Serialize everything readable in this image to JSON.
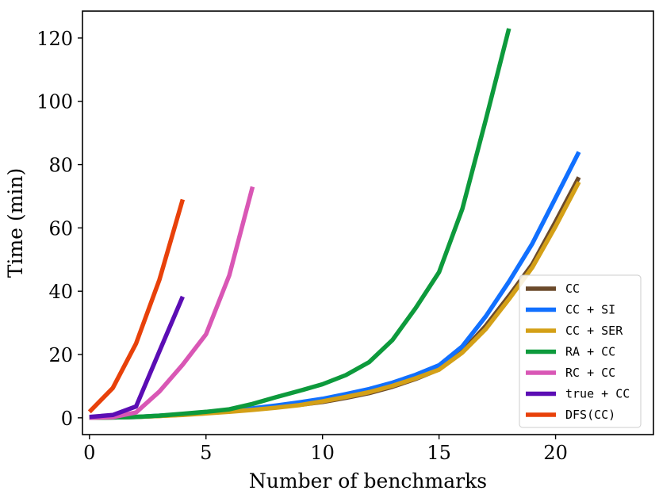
{
  "chart_data": {
    "type": "line",
    "title": "",
    "xlabel": "Number of benchmarks",
    "ylabel": "Time (min)",
    "xlim": [
      -0.3,
      24.2
    ],
    "ylim": [
      -5.3,
      128.5
    ],
    "xticks": [
      0,
      5,
      10,
      15,
      20
    ],
    "yticks": [
      0,
      20,
      40,
      60,
      80,
      100,
      120
    ],
    "legend_position": "bottom-right",
    "series": [
      {
        "name": "CC",
        "color": "#6B4A2B",
        "x": [
          0,
          1,
          2,
          3,
          4,
          5,
          6,
          7,
          8,
          9,
          10,
          11,
          12,
          13,
          14,
          15,
          16,
          17,
          18,
          19,
          20,
          21
        ],
        "y": [
          0,
          0.1,
          0.3,
          0.6,
          1.0,
          1.5,
          2.0,
          2.6,
          3.3,
          4.1,
          5.0,
          6.3,
          7.8,
          9.8,
          12.3,
          15.3,
          21.0,
          29.0,
          38.5,
          48.5,
          62.0,
          76.0
        ]
      },
      {
        "name": "CC + SI",
        "color": "#1170FF",
        "x": [
          0,
          1,
          2,
          3,
          4,
          5,
          6,
          7,
          8,
          9,
          10,
          11,
          12,
          13,
          14,
          15,
          16,
          17,
          18,
          19,
          20,
          21
        ],
        "y": [
          0,
          0.1,
          0.3,
          0.7,
          1.1,
          1.6,
          2.2,
          3.0,
          3.9,
          4.9,
          6.0,
          7.5,
          9.1,
          11.1,
          13.6,
          16.6,
          22.6,
          32.0,
          43.0,
          55.0,
          69.5,
          84.0
        ]
      },
      {
        "name": "CC + SER",
        "color": "#D4A017",
        "x": [
          0,
          1,
          2,
          3,
          4,
          5,
          6,
          7,
          8,
          9,
          10,
          11,
          12,
          13,
          14,
          15,
          16,
          17,
          18,
          19,
          20,
          21
        ],
        "y": [
          0,
          0.1,
          0.3,
          0.6,
          0.9,
          1.4,
          1.9,
          2.5,
          3.2,
          4.0,
          5.2,
          6.6,
          8.1,
          10.1,
          12.5,
          15.2,
          20.6,
          28.0,
          37.5,
          47.5,
          60.5,
          74.5
        ]
      },
      {
        "name": "RA + CC",
        "color": "#0D9A3C",
        "x": [
          0,
          1,
          2,
          3,
          4,
          5,
          6,
          7,
          8,
          9,
          10,
          11,
          12,
          13,
          14,
          15,
          16,
          17,
          18
        ],
        "y": [
          0,
          0.1,
          0.3,
          0.7,
          1.3,
          1.9,
          2.7,
          4.4,
          6.5,
          8.5,
          10.6,
          13.5,
          17.6,
          24.6,
          34.7,
          46.0,
          66.0,
          94.0,
          123.0
        ]
      },
      {
        "name": "RC + CC",
        "color": "#D957B5",
        "x": [
          0,
          1,
          2,
          3,
          4,
          5,
          6,
          7
        ],
        "y": [
          0,
          0.2,
          1.7,
          8.3,
          16.8,
          26.4,
          45.0,
          73.0
        ]
      },
      {
        "name": "true + CC",
        "color": "#5B0DB4",
        "x": [
          0,
          1,
          2,
          3,
          4
        ],
        "y": [
          0.3,
          0.9,
          3.6,
          21.0,
          38.3
        ]
      },
      {
        "name": "DFS(CC)",
        "color": "#E8410A",
        "x": [
          0,
          1,
          2,
          3,
          4
        ],
        "y": [
          1.9,
          9.4,
          23.5,
          43.6,
          69.0
        ]
      }
    ]
  }
}
